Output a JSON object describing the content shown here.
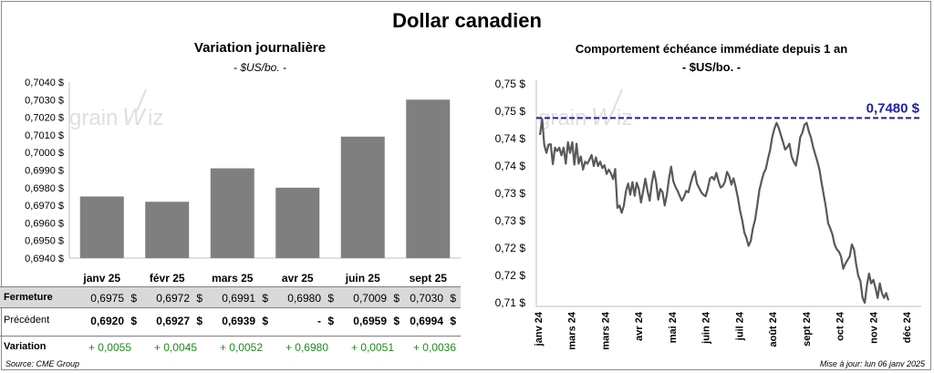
{
  "page": {
    "title": "Dollar canadien",
    "source": "Source: CME Group",
    "updated": "Mise à jour: lun 06 janv 2025",
    "watermark": "grainwiz"
  },
  "colors": {
    "bar": "#7f7f7f",
    "line": "#595959",
    "reference": "#1f1fa8",
    "positive": "#1e8c1e",
    "table_shade": "#d9d9d9"
  },
  "chart_data": [
    {
      "type": "bar",
      "title": "Variation journalière",
      "subtitle": "- $US/bo. -",
      "categories": [
        "janv 25",
        "févr 25",
        "mars 25",
        "avr 25",
        "juin 25",
        "sept 25"
      ],
      "values": [
        0.6975,
        0.6972,
        0.6991,
        0.698,
        0.7009,
        0.703
      ],
      "ylim": [
        0.694,
        0.704
      ],
      "yticks": [
        "0,6940 $",
        "0,6950 $",
        "0,6960 $",
        "0,6970 $",
        "0,6980 $",
        "0,6990 $",
        "0,7000 $",
        "0,7010 $",
        "0,7020 $",
        "0,7030 $",
        "0,7040 $"
      ],
      "grid": false
    },
    {
      "type": "line",
      "title": "Comportement échéance immédiate depuis 1 an",
      "subtitle": "- $US/bo. -",
      "x_labels": [
        "janv 24",
        "mars 24",
        "mars 24",
        "avr 24",
        "mai 24",
        "juin 24",
        "juil 24",
        "août 24",
        "sept 24",
        "oct 24",
        "nov 24",
        "déc 24"
      ],
      "yticks": [
        "0,71 $",
        "0,72 $",
        "0,72 $",
        "0,73 $",
        "0,73 $",
        "0,74 $",
        "0,74 $",
        "0,75 $",
        "0,75 $"
      ],
      "ylim": [
        0.71,
        0.755
      ],
      "reference_value": 0.748,
      "reference_label": "0,7480 $",
      "series": [
        {
          "values": [
            0.7445,
            0.7478,
            0.7425,
            0.7408,
            0.7425,
            0.7426,
            0.7385,
            0.7419,
            0.7412,
            0.7419,
            0.7403,
            0.7419,
            0.7386,
            0.743,
            0.7408,
            0.743,
            0.7384,
            0.7427,
            0.7386,
            0.7401,
            0.7374,
            0.739,
            0.7386,
            0.7394,
            0.7404,
            0.7381,
            0.7399,
            0.7381,
            0.739,
            0.7377,
            0.7383,
            0.7365,
            0.7374,
            0.7366,
            0.7354,
            0.7375,
            0.7295,
            0.73,
            0.7285,
            0.73,
            0.733,
            0.7345,
            0.7322,
            0.7348,
            0.732,
            0.7347,
            0.7333,
            0.7306,
            0.733,
            0.7355,
            0.733,
            0.731,
            0.7345,
            0.737,
            0.7349,
            0.7312,
            0.7334,
            0.7327,
            0.73,
            0.7322,
            0.7356,
            0.738,
            0.735,
            0.7338,
            0.733,
            0.7319,
            0.731,
            0.7318,
            0.733,
            0.7327,
            0.7345,
            0.736,
            0.737,
            0.7345,
            0.7336,
            0.7327,
            0.7322,
            0.7319,
            0.7334,
            0.7355,
            0.7359,
            0.7353,
            0.7367,
            0.735,
            0.7337,
            0.734,
            0.7349,
            0.7369,
            0.736,
            0.7343,
            0.7356,
            0.7338,
            0.7317,
            0.729,
            0.727,
            0.7245,
            0.7233,
            0.7217,
            0.7227,
            0.7253,
            0.727,
            0.73,
            0.7331,
            0.735,
            0.7366,
            0.7375,
            0.7396,
            0.7414,
            0.7441,
            0.7458,
            0.747,
            0.746,
            0.7445,
            0.743,
            0.7415,
            0.742,
            0.7427,
            0.7401,
            0.739,
            0.7382,
            0.7408,
            0.744,
            0.745,
            0.7466,
            0.747,
            0.7452,
            0.744,
            0.742,
            0.7405,
            0.739,
            0.7373,
            0.7345,
            0.732,
            0.7295,
            0.7263,
            0.7253,
            0.724,
            0.722,
            0.721,
            0.7205,
            0.7195,
            0.717,
            0.718,
            0.7188,
            0.7195,
            0.722,
            0.721,
            0.718,
            0.7155,
            0.7145,
            0.711,
            0.71,
            0.7135,
            0.716,
            0.714,
            0.7147,
            0.713,
            0.711,
            0.714,
            0.712,
            0.711,
            0.712,
            0.7105
          ]
        }
      ],
      "grid": false
    }
  ],
  "table": {
    "rows": [
      {
        "label": "Fermeture",
        "cells": [
          "0,6975",
          "0,6972",
          "0,6991",
          "0,6980",
          "0,7009",
          "0,7030"
        ],
        "currency": "$"
      },
      {
        "label": "Précédent",
        "cells": [
          "0,6920",
          "0,6927",
          "0,6939",
          "-",
          "0,6959",
          "0,6994"
        ],
        "currency": "$"
      }
    ],
    "variation_label": "Variation",
    "variations": [
      "+ 0,0055",
      "+ 0,0045",
      "+ 0,0052",
      "+ 0,6980",
      "+ 0,0051",
      "+ 0,0036"
    ]
  }
}
